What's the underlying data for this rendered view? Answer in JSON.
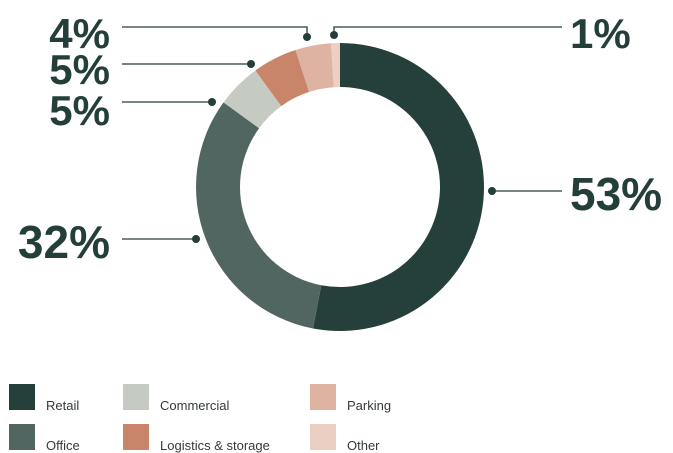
{
  "chart_data": {
    "type": "pie",
    "categories": [
      "Retail",
      "Office",
      "Commercial",
      "Logistics & storage",
      "Parking",
      "Other"
    ],
    "values": [
      53,
      32,
      5,
      5,
      4,
      1
    ],
    "value_labels": [
      "53%",
      "32%",
      "5%",
      "5%",
      "4%",
      "1%"
    ],
    "colors": [
      "#253f3b",
      "#526661",
      "#c5cbc3",
      "#c8856a",
      "#deb3a1",
      "#ebcfc2"
    ],
    "donut": true,
    "legend_position": "bottom"
  }
}
